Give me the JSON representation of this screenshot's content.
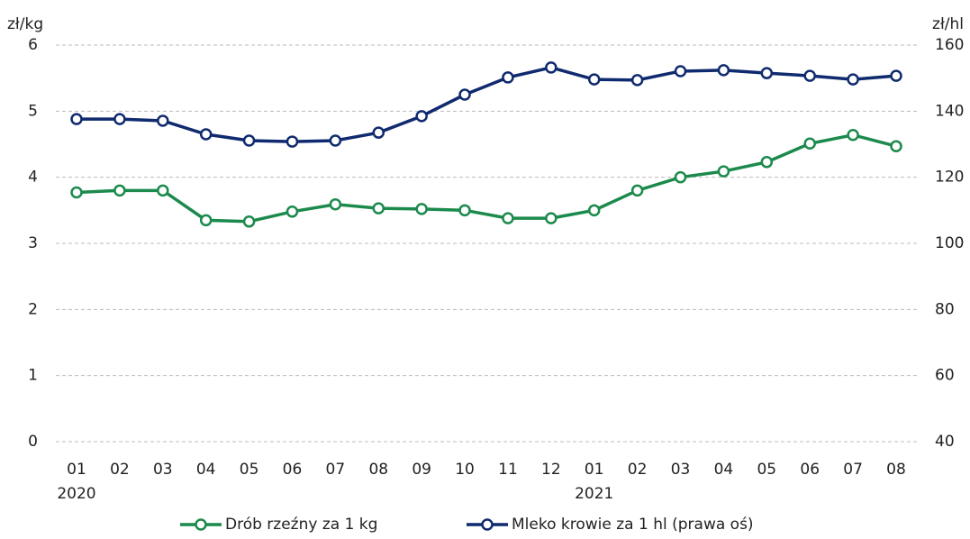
{
  "chart_data": {
    "type": "line",
    "y_label": "zł/kg",
    "y2_label": "zł/hl",
    "categories": [
      "01",
      "02",
      "03",
      "04",
      "05",
      "06",
      "07",
      "08",
      "09",
      "10",
      "11",
      "12",
      "01",
      "02",
      "03",
      "04",
      "05",
      "06",
      "07",
      "08"
    ],
    "category_years": [
      "2020",
      null,
      null,
      null,
      null,
      null,
      null,
      null,
      null,
      null,
      null,
      null,
      "2021",
      null,
      null,
      null,
      null,
      null,
      null,
      null
    ],
    "series": [
      {
        "name": "Drób rzeźny za 1 kg",
        "color": "#1b8a4c",
        "axis": "y",
        "values": [
          3.77,
          3.8,
          3.8,
          3.35,
          3.33,
          3.48,
          3.59,
          3.53,
          3.52,
          3.5,
          3.38,
          3.38,
          3.5,
          3.8,
          4.0,
          4.09,
          4.23,
          4.51,
          4.64,
          4.47
        ]
      },
      {
        "name": "Mleko krowie za 1 hl (prawa oś)",
        "color": "#0f2a6e",
        "axis": "y2",
        "values": [
          137.6,
          137.6,
          137.1,
          133.0,
          131.1,
          130.8,
          131.1,
          133.5,
          138.5,
          145.0,
          150.2,
          153.2,
          149.6,
          149.4,
          152.1,
          152.4,
          151.5,
          150.7,
          149.6,
          150.7
        ]
      }
    ],
    "ylim": [
      0,
      6
    ],
    "yticks": [
      0,
      1,
      2,
      3,
      4,
      5,
      6
    ],
    "y2lim": [
      40,
      160
    ],
    "y2ticks": [
      40,
      60,
      80,
      100,
      120,
      140,
      160
    ],
    "grid": true,
    "legend": "bottom"
  }
}
